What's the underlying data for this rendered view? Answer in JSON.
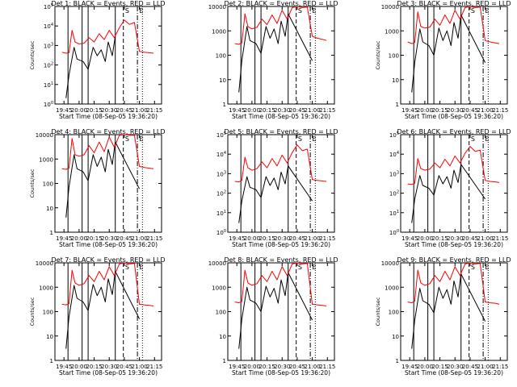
{
  "chart_data": [
    {
      "type": "line",
      "title": "Det 1: BLACK = Events, RED = LLD",
      "xlabel": "Start Time (08-Sep-05 19:36:20)",
      "ylabel": "Counts/sec",
      "yscale": "log",
      "ylim": [
        1,
        100000
      ],
      "y_ticks": [
        "10^0",
        "10^1",
        "10^2",
        "10^3",
        "10^4",
        "10^5"
      ],
      "x_ticks": [
        "19:45",
        "20:00",
        "20:15",
        "20:30",
        "20:45",
        "21:00",
        "21:15"
      ],
      "annotations": [
        "S",
        "E"
      ],
      "series": [
        {
          "name": "Events",
          "color": "#000000",
          "x": [
            "19:43",
            "19:47",
            "19:50",
            "19:55",
            "19:58",
            "20:04",
            "20:09",
            "20:14",
            "20:18",
            "20:22",
            "20:26",
            "20:29",
            "20:33",
            "20:36",
            "20:44",
            "20:50",
            "20:56",
            "21:00"
          ],
          "y": [
            null,
            2,
            30,
            800,
            200,
            150,
            60,
            800,
            300,
            600,
            150,
            1500,
            300,
            3000,
            null,
            null,
            null,
            60
          ]
        },
        {
          "name": "LLD",
          "color": "#ff0000",
          "x": [
            "19:43",
            "19:47",
            "19:50",
            "19:53",
            "19:56",
            "20:00",
            "20:05",
            "20:10",
            "20:15",
            "20:20",
            "20:25",
            "20:30",
            "20:35",
            "20:40",
            "20:45",
            "20:50",
            "20:55",
            "21:00",
            "21:05",
            "21:10",
            "21:14"
          ],
          "y": [
            450,
            400,
            420,
            6000,
            1500,
            1200,
            1300,
            2500,
            1500,
            4000,
            2000,
            6000,
            2500,
            8000,
            20000,
            12000,
            15000,
            500,
            450,
            420,
            400
          ]
        }
      ]
    },
    {
      "type": "line",
      "title": "Det 2: BLACK = Events, RED = LLD",
      "xlabel": "Start Time (08-Sep-05 19:36:20)",
      "ylabel": "",
      "yscale": "log",
      "ylim": [
        1,
        10000
      ],
      "y_ticks": [
        "1",
        "10",
        "100",
        "1000",
        "10000"
      ],
      "x_ticks": [
        "19:45",
        "20:00",
        "20:15",
        "20:30",
        "20:45",
        "21:00",
        "21:15"
      ],
      "annotations": [
        "S",
        "E"
      ],
      "series": [
        {
          "name": "Events",
          "color": "#000000",
          "x": [
            "19:47",
            "19:50",
            "19:55",
            "19:58",
            "20:04",
            "20:09",
            "20:14",
            "20:18",
            "20:22",
            "20:26",
            "20:29",
            "20:33",
            "20:36",
            "21:00"
          ],
          "y": [
            3,
            60,
            1500,
            400,
            300,
            120,
            1500,
            500,
            1200,
            300,
            2500,
            600,
            5000,
            60
          ]
        },
        {
          "name": "LLD",
          "color": "#ff0000",
          "x": [
            "19:43",
            "19:47",
            "19:50",
            "19:53",
            "19:56",
            "20:00",
            "20:05",
            "20:10",
            "20:15",
            "20:20",
            "20:25",
            "20:30",
            "20:35",
            "20:40",
            "20:45",
            "20:50",
            "20:55",
            "21:00",
            "21:05",
            "21:10",
            "21:14"
          ],
          "y": [
            300,
            280,
            320,
            5000,
            1500,
            1200,
            1400,
            3000,
            1800,
            4500,
            2000,
            7000,
            3000,
            9000,
            10000,
            9000,
            9500,
            600,
            500,
            450,
            400
          ]
        }
      ]
    },
    {
      "type": "line",
      "title": "Det 3: BLACK = Events, RED = LLD",
      "xlabel": "Start Time (08-Sep-05 19:36:20)",
      "ylabel": "Counts/sec",
      "yscale": "log",
      "ylim": [
        1,
        10000
      ],
      "y_ticks": [
        "1",
        "10",
        "100",
        "1000",
        "10000"
      ],
      "x_ticks": [
        "19:45",
        "20:00",
        "20:15",
        "20:30",
        "20:45",
        "21:00",
        "21:15"
      ],
      "annotations": [
        "S",
        "E"
      ],
      "series": [
        {
          "name": "Events",
          "color": "#000000",
          "x": [
            "19:47",
            "19:50",
            "19:55",
            "19:58",
            "20:04",
            "20:09",
            "20:14",
            "20:18",
            "20:22",
            "20:26",
            "20:29",
            "20:33",
            "20:36",
            "21:00"
          ],
          "y": [
            3,
            50,
            1200,
            350,
            250,
            100,
            1300,
            400,
            1000,
            250,
            2200,
            500,
            4500,
            50
          ]
        },
        {
          "name": "LLD",
          "color": "#ff0000",
          "x": [
            "19:43",
            "19:47",
            "19:50",
            "19:53",
            "19:56",
            "20:00",
            "20:05",
            "20:10",
            "20:15",
            "20:20",
            "20:25",
            "20:30",
            "20:35",
            "20:40",
            "20:45",
            "20:50",
            "20:55",
            "21:00",
            "21:05",
            "21:10",
            "21:14"
          ],
          "y": [
            350,
            300,
            330,
            6000,
            1500,
            1300,
            1400,
            3000,
            1700,
            4500,
            2000,
            7000,
            3000,
            9000,
            10000,
            9000,
            9500,
            400,
            350,
            320,
            300
          ]
        }
      ]
    },
    {
      "type": "line",
      "title": "Det 4: BLACK = Events, RED = LLD",
      "xlabel": "Start Time (08-Sep-05 19:36:20)",
      "ylabel": "Counts/sec",
      "yscale": "log",
      "ylim": [
        1,
        10000
      ],
      "y_ticks": [
        "1",
        "10",
        "100",
        "1000",
        "10000"
      ],
      "x_ticks": [
        "19:45",
        "20:00",
        "20:15",
        "20:30",
        "20:45",
        "21:00",
        "21:15"
      ],
      "annotations": [
        "S",
        "E"
      ],
      "series": [
        {
          "name": "Events",
          "color": "#000000",
          "x": [
            "19:47",
            "19:50",
            "19:55",
            "19:58",
            "20:04",
            "20:09",
            "20:14",
            "20:18",
            "20:22",
            "20:26",
            "20:29",
            "20:33",
            "20:36",
            "21:00"
          ],
          "y": [
            4,
            70,
            1500,
            400,
            300,
            130,
            1500,
            500,
            1200,
            300,
            2500,
            600,
            5000,
            60
          ]
        },
        {
          "name": "LLD",
          "color": "#ff0000",
          "x": [
            "19:43",
            "19:47",
            "19:50",
            "19:53",
            "19:56",
            "20:00",
            "20:05",
            "20:10",
            "20:15",
            "20:20",
            "20:25",
            "20:30",
            "20:35",
            "20:40",
            "20:45",
            "20:50",
            "20:55",
            "21:00",
            "21:05",
            "21:10",
            "21:14"
          ],
          "y": [
            400,
            380,
            420,
            7000,
            1500,
            1300,
            1500,
            3500,
            1800,
            5000,
            2000,
            8000,
            3000,
            9500,
            10000,
            9500,
            9500,
            500,
            450,
            420,
            400
          ]
        }
      ]
    },
    {
      "type": "line",
      "title": "Det 5: BLACK = Events, RED = LLD",
      "xlabel": "Start Time (08-Sep-05 19:36:20)",
      "ylabel": "",
      "yscale": "log",
      "ylim": [
        1,
        100000
      ],
      "y_ticks": [
        "10^0",
        "10^1",
        "10^2",
        "10^3",
        "10^4",
        "10^5"
      ],
      "x_ticks": [
        "19:45",
        "20:00",
        "20:15",
        "20:30",
        "20:45",
        "21:00",
        "21:15"
      ],
      "annotations": [
        "S",
        "E"
      ],
      "series": [
        {
          "name": "Events",
          "color": "#000000",
          "x": [
            "19:47",
            "19:50",
            "19:55",
            "19:58",
            "20:04",
            "20:09",
            "20:14",
            "20:18",
            "20:22",
            "20:26",
            "20:29",
            "20:33",
            "20:36",
            "21:00"
          ],
          "y": [
            3,
            40,
            700,
            200,
            150,
            60,
            700,
            250,
            600,
            150,
            1200,
            300,
            2500,
            40
          ]
        },
        {
          "name": "LLD",
          "color": "#ff0000",
          "x": [
            "19:43",
            "19:47",
            "19:50",
            "19:53",
            "19:56",
            "20:00",
            "20:05",
            "20:10",
            "20:15",
            "20:20",
            "20:25",
            "20:30",
            "20:35",
            "20:40",
            "20:45",
            "20:50",
            "20:55",
            "21:00",
            "21:05",
            "21:10",
            "21:14"
          ],
          "y": [
            400,
            380,
            450,
            7000,
            2000,
            1500,
            1800,
            4000,
            2000,
            6000,
            2500,
            9000,
            3500,
            12000,
            30000,
            15000,
            18000,
            500,
            450,
            420,
            400
          ]
        }
      ]
    },
    {
      "type": "line",
      "title": "Det 6: BLACK = Events, RED = LLD",
      "xlabel": "Start Time (08-Sep-05 19:36:20)",
      "ylabel": "",
      "yscale": "log",
      "ylim": [
        1,
        100000
      ],
      "y_ticks": [
        "10^0",
        "10^1",
        "10^2",
        "10^3",
        "10^4",
        "10^5"
      ],
      "x_ticks": [
        "19:45",
        "20:00",
        "20:15",
        "20:30",
        "20:45",
        "21:00",
        "21:15"
      ],
      "annotations": [
        "S",
        "E"
      ],
      "series": [
        {
          "name": "Events",
          "color": "#000000",
          "x": [
            "19:47",
            "19:50",
            "19:55",
            "19:58",
            "20:04",
            "20:09",
            "20:14",
            "20:18",
            "20:22",
            "20:26",
            "20:29",
            "20:33",
            "20:36",
            "21:00"
          ],
          "y": [
            3,
            50,
            800,
            250,
            180,
            80,
            800,
            300,
            700,
            180,
            1500,
            350,
            3000,
            50
          ]
        },
        {
          "name": "LLD",
          "color": "#ff0000",
          "x": [
            "19:43",
            "19:47",
            "19:50",
            "19:53",
            "19:56",
            "20:00",
            "20:05",
            "20:10",
            "20:15",
            "20:20",
            "20:25",
            "20:30",
            "20:35",
            "20:40",
            "20:45",
            "20:50",
            "20:55",
            "21:00",
            "21:05",
            "21:10",
            "21:14"
          ],
          "y": [
            300,
            280,
            320,
            6000,
            1800,
            1500,
            1700,
            3500,
            2000,
            5500,
            2500,
            8000,
            3500,
            11000,
            25000,
            14000,
            16000,
            450,
            400,
            380,
            350
          ]
        }
      ]
    },
    {
      "type": "line",
      "title": "Det 7: BLACK = Events, RED = LLD",
      "xlabel": "Start Time (08-Sep-05 19:36:20)",
      "ylabel": "Counts/sec",
      "yscale": "log",
      "ylim": [
        1,
        10000
      ],
      "y_ticks": [
        "1",
        "10",
        "100",
        "1000",
        "10000"
      ],
      "x_ticks": [
        "19:45",
        "20:00",
        "20:15",
        "20:30",
        "20:45",
        "21:00",
        "21:15"
      ],
      "annotations": [
        "S",
        "E"
      ],
      "series": [
        {
          "name": "Events",
          "color": "#000000",
          "x": [
            "19:47",
            "19:50",
            "19:55",
            "19:58",
            "20:04",
            "20:09",
            "20:14",
            "20:18",
            "20:22",
            "20:26",
            "20:29",
            "20:33",
            "20:36",
            "21:00"
          ],
          "y": [
            3,
            60,
            1200,
            350,
            250,
            110,
            1300,
            450,
            1000,
            250,
            2200,
            500,
            4500,
            50
          ]
        },
        {
          "name": "LLD",
          "color": "#ff0000",
          "x": [
            "19:43",
            "19:47",
            "19:50",
            "19:53",
            "19:56",
            "20:00",
            "20:05",
            "20:10",
            "20:15",
            "20:20",
            "20:25",
            "20:30",
            "20:35",
            "20:40",
            "20:45",
            "20:50",
            "20:55",
            "21:00",
            "21:05",
            "21:10",
            "21:14"
          ],
          "y": [
            200,
            190,
            210,
            5000,
            1500,
            1200,
            1400,
            3000,
            1700,
            4500,
            2000,
            7000,
            3000,
            9000,
            10000,
            9000,
            9500,
            200,
            190,
            180,
            170
          ]
        }
      ]
    },
    {
      "type": "line",
      "title": "Det 8: BLACK = Events, RED = LLD",
      "xlabel": "Start Time (08-Sep-05 19:36:20)",
      "ylabel": "",
      "yscale": "log",
      "ylim": [
        1,
        10000
      ],
      "y_ticks": [
        "1",
        "10",
        "100",
        "1000",
        "10000"
      ],
      "x_ticks": [
        "19:45",
        "20:00",
        "20:15",
        "20:30",
        "20:45",
        "21:00",
        "21:15"
      ],
      "annotations": [
        "S",
        "E"
      ],
      "series": [
        {
          "name": "Events",
          "color": "#000000",
          "x": [
            "19:47",
            "19:50",
            "19:55",
            "19:58",
            "20:04",
            "20:09",
            "20:14",
            "20:18",
            "20:22",
            "20:26",
            "20:29",
            "20:33",
            "20:36",
            "21:00"
          ],
          "y": [
            3,
            50,
            1000,
            300,
            220,
            100,
            1100,
            400,
            900,
            220,
            2000,
            450,
            4000,
            45
          ]
        },
        {
          "name": "LLD",
          "color": "#ff0000",
          "x": [
            "19:43",
            "19:47",
            "19:50",
            "19:53",
            "19:56",
            "20:00",
            "20:05",
            "20:10",
            "20:15",
            "20:20",
            "20:25",
            "20:30",
            "20:35",
            "20:40",
            "20:45",
            "20:50",
            "20:55",
            "21:00",
            "21:05",
            "21:10",
            "21:14"
          ],
          "y": [
            250,
            230,
            260,
            5000,
            1500,
            1200,
            1400,
            3000,
            1700,
            4500,
            2000,
            7000,
            3000,
            9000,
            10000,
            9000,
            9500,
            200,
            190,
            180,
            170
          ]
        }
      ]
    },
    {
      "type": "line",
      "title": "Det 9: BLACK = Events, RED = LLD",
      "xlabel": "Start Time (08-Sep-05 19:36:20)",
      "ylabel": "Counts/sec",
      "yscale": "log",
      "ylim": [
        1,
        10000
      ],
      "y_ticks": [
        "1",
        "10",
        "100",
        "1000",
        "10000"
      ],
      "x_ticks": [
        "19:45",
        "20:00",
        "20:15",
        "20:30",
        "20:45",
        "21:00",
        "21:15"
      ],
      "annotations": [
        "S",
        "E"
      ],
      "series": [
        {
          "name": "Events",
          "color": "#000000",
          "x": [
            "19:47",
            "19:50",
            "19:55",
            "19:58",
            "20:04",
            "20:09",
            "20:14",
            "20:18",
            "20:22",
            "20:26",
            "20:29",
            "20:33",
            "20:36",
            "21:00"
          ],
          "y": [
            3,
            45,
            900,
            280,
            200,
            90,
            1000,
            350,
            800,
            200,
            1800,
            400,
            3500,
            40
          ]
        },
        {
          "name": "LLD",
          "color": "#ff0000",
          "x": [
            "19:43",
            "19:47",
            "19:50",
            "19:53",
            "19:56",
            "20:00",
            "20:05",
            "20:10",
            "20:15",
            "20:20",
            "20:25",
            "20:30",
            "20:35",
            "20:40",
            "20:45",
            "20:50",
            "20:55",
            "21:00",
            "21:05",
            "21:10",
            "21:14"
          ],
          "y": [
            250,
            230,
            270,
            5000,
            1500,
            1200,
            1400,
            3000,
            1700,
            4500,
            2000,
            7000,
            3000,
            9000,
            10000,
            9000,
            9500,
            250,
            230,
            220,
            200
          ]
        }
      ]
    }
  ]
}
